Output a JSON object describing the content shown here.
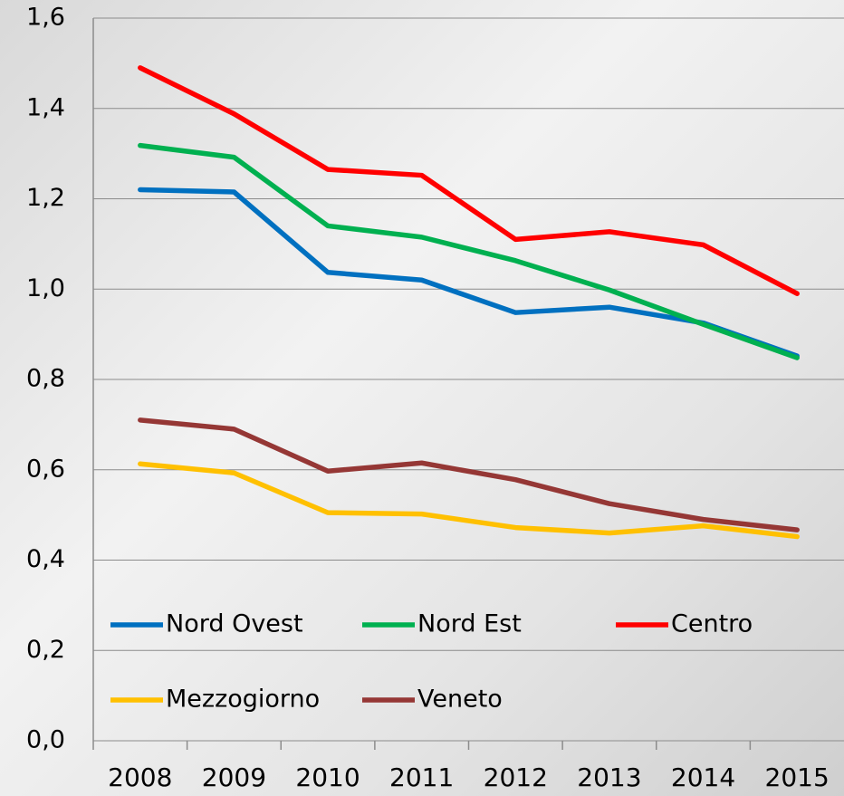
{
  "chart_data": {
    "type": "line",
    "categories": [
      "2008",
      "2009",
      "2010",
      "2011",
      "2012",
      "2013",
      "2014",
      "2015"
    ],
    "series": [
      {
        "name": "Nord Ovest",
        "color": "#0070c0",
        "values": [
          1.22,
          1.215,
          1.037,
          1.02,
          0.948,
          0.96,
          0.925,
          0.852
        ]
      },
      {
        "name": "Nord Est",
        "color": "#00b050",
        "values": [
          1.318,
          1.292,
          1.14,
          1.115,
          1.063,
          0.998,
          0.922,
          0.848
        ]
      },
      {
        "name": "Centro",
        "color": "#ff0000",
        "values": [
          1.49,
          1.388,
          1.265,
          1.252,
          1.11,
          1.127,
          1.098,
          0.99
        ]
      },
      {
        "name": "Mezzogiorno",
        "color": "#ffc000",
        "values": [
          0.613,
          0.593,
          0.505,
          0.502,
          0.472,
          0.46,
          0.476,
          0.452
        ]
      },
      {
        "name": "Veneto",
        "color": "#953735",
        "values": [
          0.71,
          0.69,
          0.597,
          0.615,
          0.578,
          0.525,
          0.49,
          0.467
        ]
      }
    ],
    "ylim": [
      0,
      1.6
    ],
    "yticks": [
      {
        "value": 0,
        "label": "0,0"
      },
      {
        "value": 0.2,
        "label": "0,2"
      },
      {
        "value": 0.4,
        "label": "0,4"
      },
      {
        "value": 0.6,
        "label": "0,6"
      },
      {
        "value": 0.8,
        "label": "0,8"
      },
      {
        "value": 1.0,
        "label": "1,0"
      },
      {
        "value": 1.2,
        "label": "1,2"
      },
      {
        "value": 1.4,
        "label": "1,4"
      },
      {
        "value": 1.6,
        "label": "1,6"
      }
    ],
    "grid": true
  }
}
